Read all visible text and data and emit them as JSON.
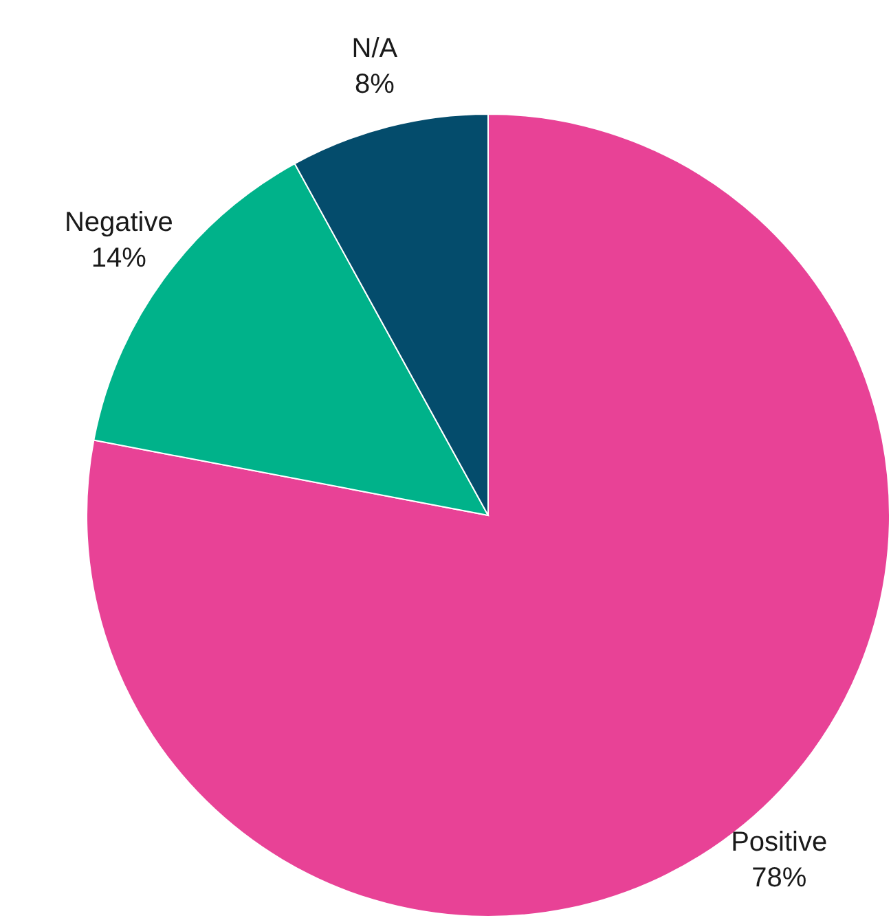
{
  "chart_data": {
    "type": "pie",
    "categories": [
      "Positive",
      "Negative",
      "N/A"
    ],
    "values": [
      78,
      14,
      8
    ],
    "colors": [
      "#e84296",
      "#00b28a",
      "#044c6c"
    ],
    "value_labels": [
      "78%",
      "14%",
      "8%"
    ],
    "legend": false
  }
}
